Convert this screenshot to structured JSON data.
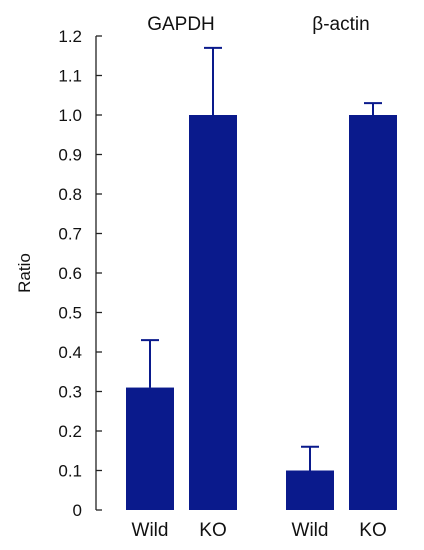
{
  "chart_data": {
    "type": "bar",
    "ylabel": "Ratio",
    "ylim": [
      0,
      1.2
    ],
    "yticks": [
      "0",
      "0.1",
      "0.2",
      "0.3",
      "0.4",
      "0.5",
      "0.6",
      "0.7",
      "0.8",
      "0.9",
      "1.0",
      "1.1",
      "1.2"
    ],
    "ytick_values": [
      0,
      0.1,
      0.2,
      0.3,
      0.4,
      0.5,
      0.6,
      0.7,
      0.8,
      0.9,
      1.0,
      1.1,
      1.2
    ],
    "grid": false,
    "legend": "none",
    "groups": [
      {
        "title": "GAPDH",
        "bars": [
          {
            "category": "Wild",
            "value": 0.31,
            "error": 0.12
          },
          {
            "category": "KO",
            "value": 1.0,
            "error": 0.17
          }
        ]
      },
      {
        "title": "β-actin",
        "bars": [
          {
            "category": "Wild",
            "value": 0.1,
            "error": 0.06
          },
          {
            "category": "KO",
            "value": 1.0,
            "error": 0.03
          }
        ]
      }
    ],
    "colors": {
      "bar": "#0a1a8c",
      "axis": "#222222"
    }
  }
}
